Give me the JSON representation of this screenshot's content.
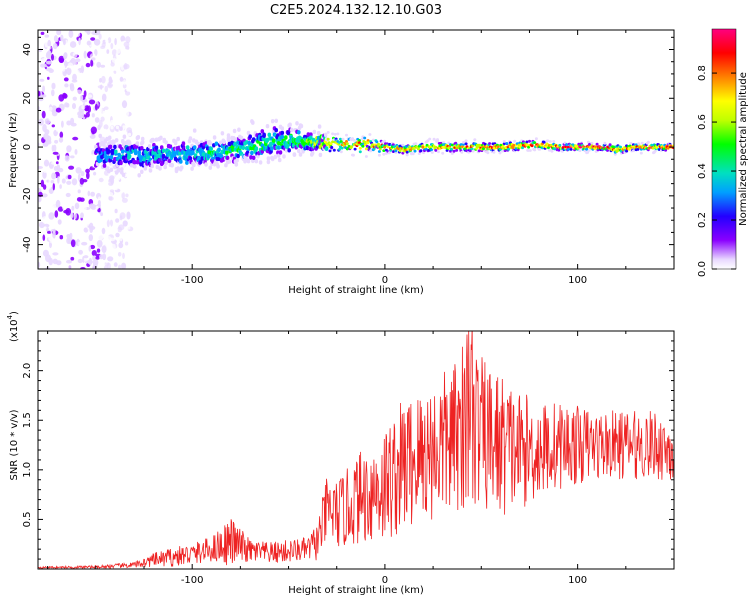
{
  "title": "C2E5.2024.132.12.10.G03",
  "chart_data": [
    {
      "type": "heatmap",
      "name": "spectrogram",
      "xlabel": "Height of straight line (km)",
      "ylabel": "Frequency (Hz)",
      "xlim": [
        -180,
        150
      ],
      "ylim": [
        -50,
        48
      ],
      "x_ticks": [
        -100,
        0,
        100
      ],
      "x_tick_labels": [
        "-100",
        "0",
        "100"
      ],
      "y_ticks": [
        -40,
        -20,
        0,
        20,
        40
      ],
      "y_tick_labels": [
        "-40",
        "-20",
        "0",
        "20",
        "40"
      ],
      "colorbar": {
        "label": "Normalized spectral amplitude",
        "range": [
          0.0,
          0.98
        ],
        "ticks": [
          0.0,
          0.2,
          0.4,
          0.6,
          0.8
        ],
        "tick_labels": [
          "0.0",
          "0.2",
          "0.4",
          "0.6",
          "0.8"
        ],
        "colormap": [
          "#ffffff",
          "#e8d8ff",
          "#8a00ff",
          "#2200ff",
          "#00a0ff",
          "#00e0c0",
          "#00ff00",
          "#c0ff00",
          "#ffff00",
          "#ff8000",
          "#ff0000",
          "#ff0080"
        ]
      },
      "ridge_profile": {
        "x": [
          -150,
          -130,
          -110,
          -90,
          -70,
          -60,
          -50,
          -40,
          -30,
          -20,
          -10,
          0,
          10,
          20,
          40,
          60,
          80,
          90,
          100,
          115,
          120,
          130,
          150
        ],
        "center_freq": [
          -4,
          -3,
          -3,
          -2,
          0,
          2,
          3,
          2,
          2,
          1,
          1,
          0,
          -1,
          0,
          0,
          0,
          1,
          0,
          0,
          0,
          -1,
          0,
          0
        ],
        "half_width": [
          6,
          6,
          5,
          5,
          6,
          7,
          6,
          4,
          3,
          3,
          3,
          2,
          2,
          2,
          2,
          2,
          2,
          1.5,
          1.5,
          1.5,
          2,
          1.5,
          1.5
        ],
        "peak_amplitude": [
          0.35,
          0.45,
          0.45,
          0.5,
          0.55,
          0.55,
          0.55,
          0.6,
          0.75,
          0.8,
          0.85,
          0.85,
          0.85,
          0.85,
          0.85,
          0.9,
          0.9,
          0.95,
          0.95,
          0.95,
          0.9,
          0.95,
          0.95
        ]
      },
      "noise_region_x": [
        -180,
        -140
      ]
    },
    {
      "type": "line",
      "name": "snr",
      "xlabel": "Height of straight line (km)",
      "ylabel": "SNR (10 * v/v)",
      "y_multiplier_label": "(x10",
      "y_multiplier_exp": "4",
      "xlim": [
        -180,
        150
      ],
      "ylim": [
        0,
        24000
      ],
      "x_ticks": [
        -100,
        0,
        100
      ],
      "x_tick_labels": [
        "-100",
        "0",
        "100"
      ],
      "y_ticks": [
        5000,
        10000,
        15000,
        20000
      ],
      "y_tick_labels": [
        "0.5",
        "1.0",
        "1.5",
        "2.0"
      ],
      "color": "#ee2222",
      "envelope": {
        "x": [
          -180,
          -150,
          -130,
          -120,
          -110,
          -100,
          -90,
          -80,
          -70,
          -60,
          -50,
          -40,
          -35,
          -30,
          -25,
          -20,
          -15,
          -10,
          -5,
          0,
          5,
          10,
          20,
          30,
          40,
          45,
          50,
          60,
          70,
          80,
          90,
          100,
          110,
          120,
          130,
          140,
          150
        ],
        "mean": [
          150,
          200,
          400,
          900,
          1200,
          1500,
          2000,
          2800,
          1800,
          1600,
          1800,
          2000,
          2800,
          6000,
          5500,
          6000,
          7000,
          7500,
          8000,
          8500,
          9500,
          10500,
          11500,
          12500,
          13500,
          15000,
          13500,
          12500,
          12000,
          12000,
          12500,
          12500,
          12500,
          12500,
          12500,
          12500,
          12000
        ],
        "amplitude": [
          80,
          150,
          300,
          700,
          1000,
          1100,
          1300,
          2500,
          1200,
          1100,
          1200,
          1200,
          2000,
          3500,
          3500,
          4000,
          4500,
          5000,
          5500,
          6000,
          6500,
          7000,
          7000,
          7500,
          8000,
          9000,
          8000,
          7500,
          6000,
          5000,
          4500,
          4000,
          3500,
          3500,
          3500,
          3500,
          3500
        ]
      }
    }
  ]
}
